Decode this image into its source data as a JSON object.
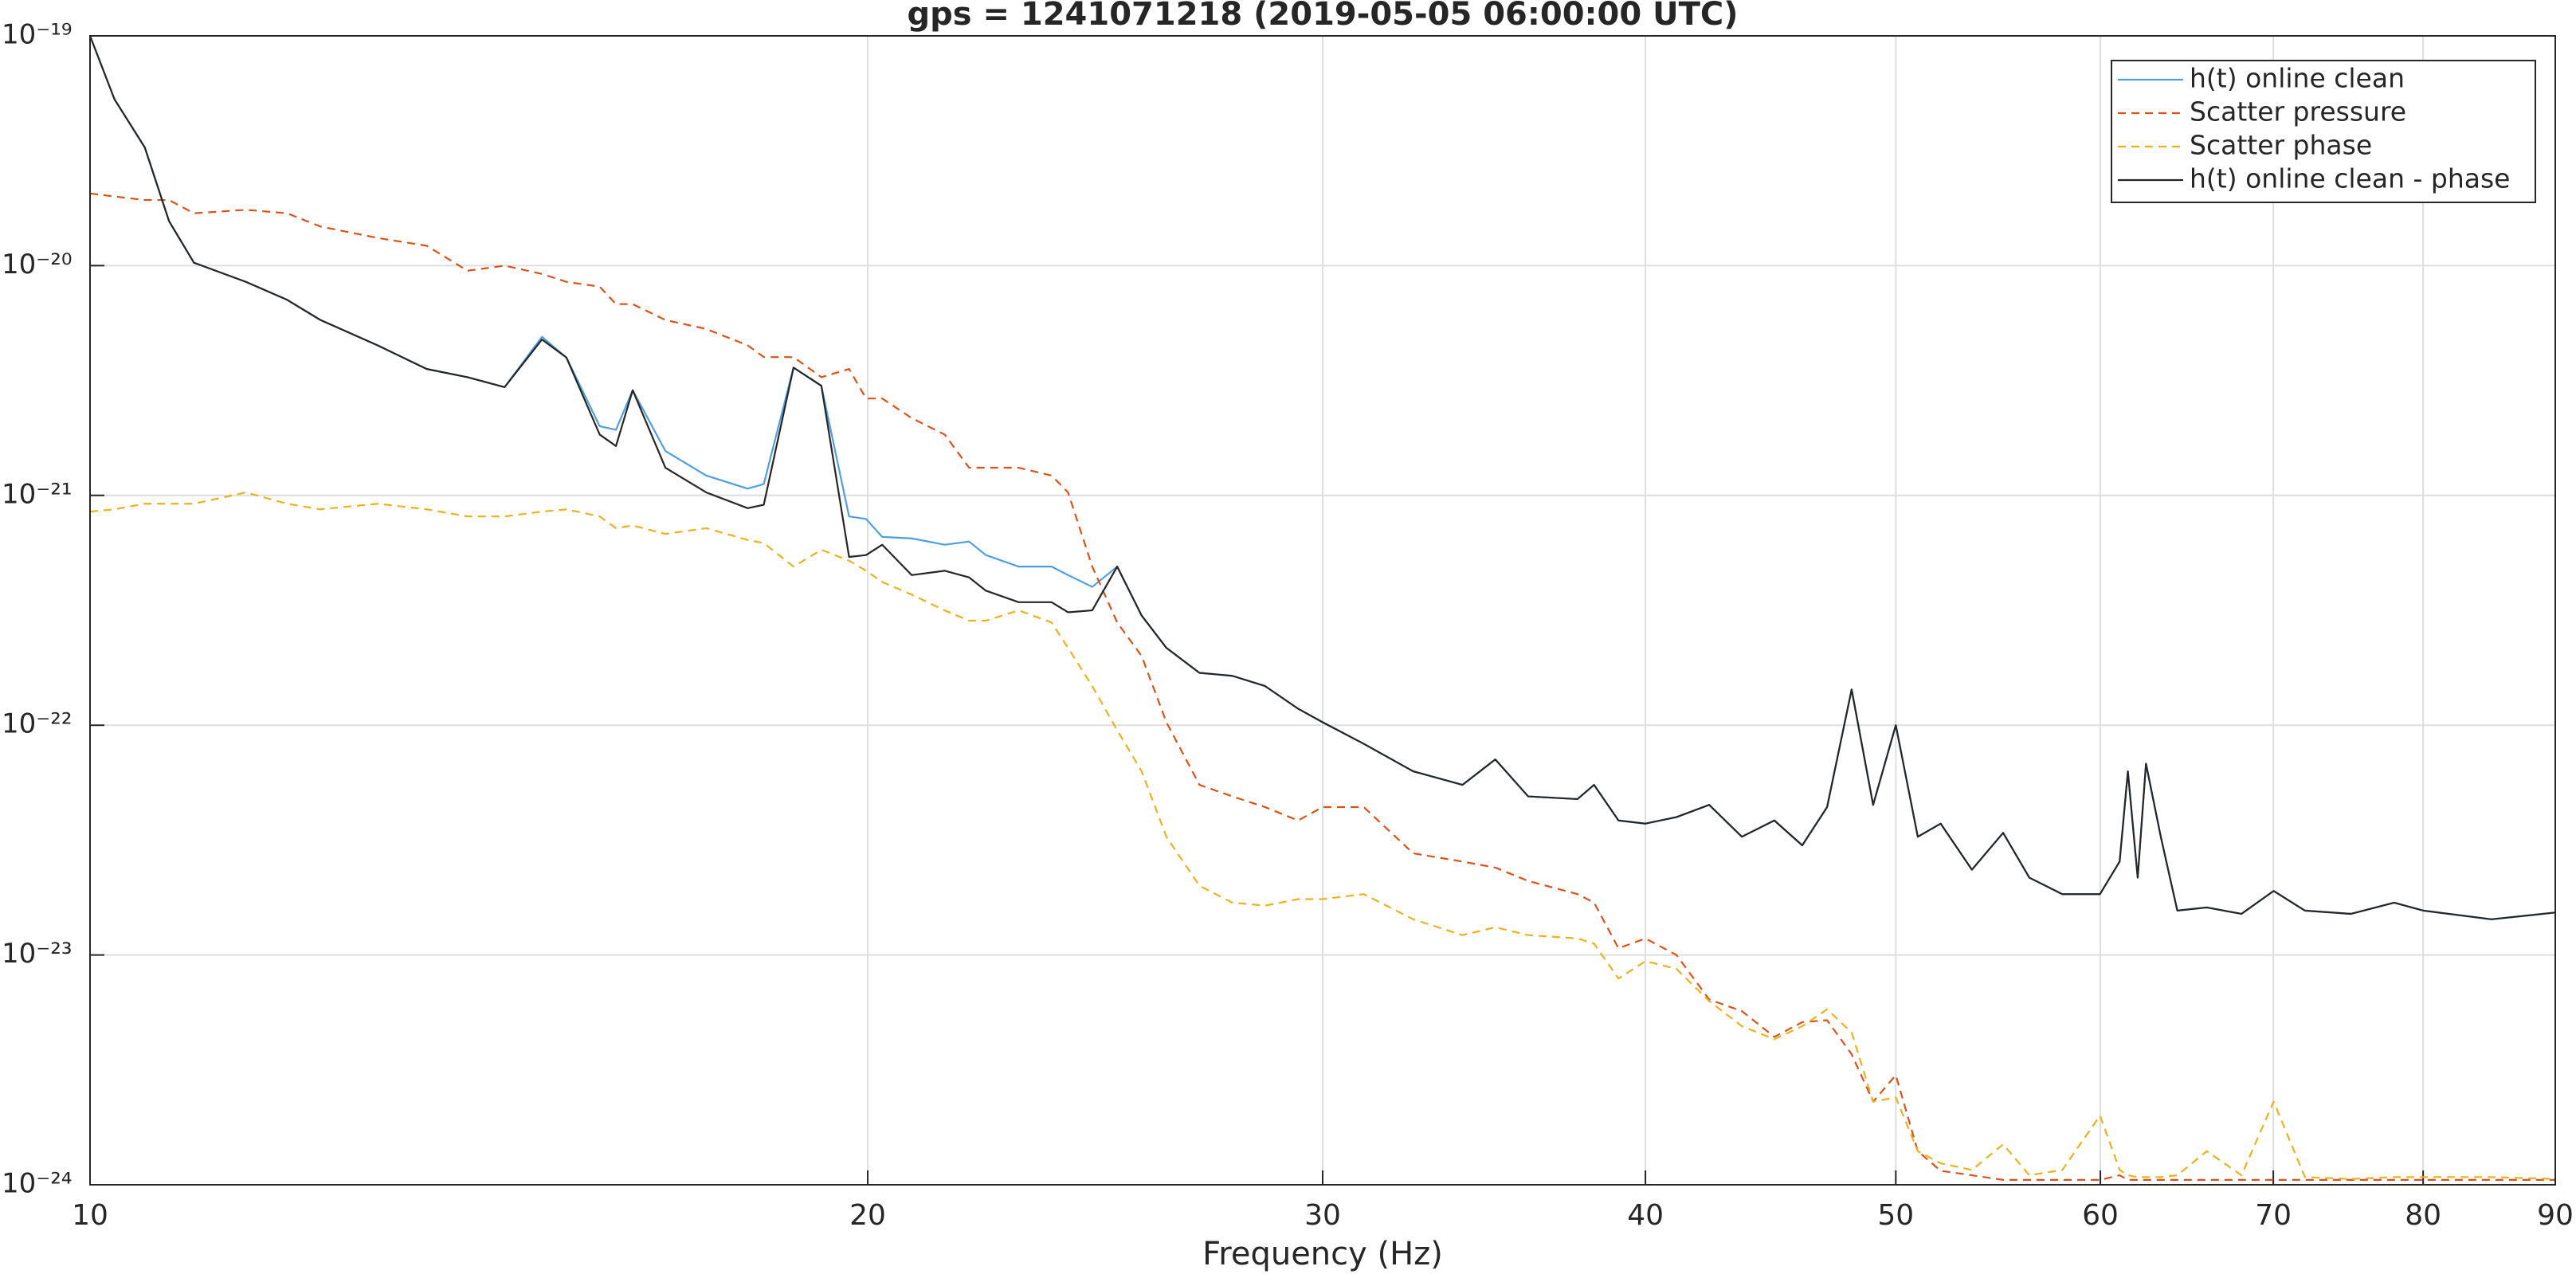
{
  "chart_data": {
    "type": "line",
    "title": "gps = 1241071218 (2019-05-05 06:00:00 UTC)",
    "xlabel": "Frequency (Hz)",
    "xscale": "log",
    "yscale": "log",
    "xlim": [
      10,
      90
    ],
    "ylim": [
      1e-24,
      1e-19
    ],
    "xticks": [
      10,
      20,
      30,
      40,
      50,
      60,
      70,
      80,
      90
    ],
    "yticks": [
      {
        "value": 1e-24,
        "label": "10⁻²⁴"
      },
      {
        "value": 1e-23,
        "label": "10⁻²³"
      },
      {
        "value": 1e-22,
        "label": "10⁻²²"
      },
      {
        "value": 1e-21,
        "label": "10⁻²¹"
      },
      {
        "value": 1e-20,
        "label": "10⁻²⁰"
      },
      {
        "value": 1e-19,
        "label": "10⁻¹⁹"
      }
    ],
    "grid": true,
    "legend": "northeast",
    "x": [
      10,
      10.22,
      10.5,
      10.73,
      10.97,
      11.49,
      11.92,
      12.28,
      12.92,
      13.5,
      14,
      14.47,
      14.96,
      15.29,
      15.75,
      15.98,
      16.22,
      16.7,
      17.32,
      17.97,
      18.23,
      18.72,
      19.19,
      19.67,
      19.97,
      20.26,
      20.8,
      21.42,
      21.89,
      22.22,
      22.88,
      23.56,
      23.91,
      24.43,
      24.98,
      25.53,
      26.1,
      26.88,
      27.68,
      28.5,
      29.35,
      30,
      31.12,
      32.52,
      33.98,
      34.99,
      36.03,
      37.65,
      38.21,
      39.05,
      40,
      41.12,
      42.34,
      43.59,
      44.87,
      46,
      47.03,
      48.07,
      49,
      50,
      50.99,
      52.04,
      53.51,
      55.02,
      56.32,
      58,
      59.98,
      61.04,
      61.49,
      62.03,
      62.49,
      63.32,
      64.26,
      65.97,
      68.04,
      70.02,
      72,
      75.02,
      77.96,
      80.02,
      85.02,
      90
    ],
    "series": [
      {
        "name": "h(t) online clean",
        "color": "#4f9fe0",
        "linestyle": "solid",
        "values": [
          1e-19,
          5.3e-20,
          3.27e-20,
          1.56e-20,
          1.03e-20,
          8.5e-21,
          7.1e-21,
          5.8e-21,
          4.5e-21,
          3.55e-21,
          3.27e-21,
          2.96e-21,
          4.9e-21,
          3.98e-21,
          2e-21,
          1.93e-21,
          2.87e-21,
          1.56e-21,
          1.22e-21,
          1.07e-21,
          1.12e-21,
          3.6e-21,
          3e-21,
          8.1e-22,
          7.9e-22,
          6.6e-22,
          6.5e-22,
          6.1e-22,
          6.3e-22,
          5.5e-22,
          4.9e-22,
          4.9e-22,
          4.5e-22,
          4e-22,
          4.9e-22,
          3e-22,
          2.17e-22,
          1.69e-22,
          1.64e-22,
          1.48e-22,
          1.18e-22,
          1.03e-22,
          8.3e-23,
          6.3e-23,
          5.5e-23,
          7.1e-23,
          4.9e-23,
          4.77e-23,
          5.5e-23,
          3.85e-23,
          3.73e-23,
          3.98e-23,
          4.5e-23,
          3.27e-23,
          3.85e-23,
          3e-23,
          4.4e-23,
          1.43e-22,
          4.5e-23,
          1e-22,
          3.27e-23,
          3.73e-23,
          2.35e-23,
          3.4e-23,
          2.17e-23,
          1.84e-23,
          1.84e-23,
          2.55e-23,
          6.3e-23,
          2.17e-23,
          6.8e-23,
          3.27e-23,
          1.56e-23,
          1.61e-23,
          1.51e-23,
          1.9e-23,
          1.56e-23,
          1.51e-23,
          1.69e-23,
          1.56e-23,
          1.43e-23,
          1.53e-23
        ]
      },
      {
        "name": "Scatter pressure",
        "color": "#d95319",
        "linestyle": "dashed",
        "values": [
          2.06e-20,
          2e-20,
          1.93e-20,
          1.93e-20,
          1.69e-20,
          1.75e-20,
          1.69e-20,
          1.48e-20,
          1.32e-20,
          1.22e-20,
          9.5e-21,
          1e-20,
          9.2e-21,
          8.5e-21,
          8.1e-21,
          6.8e-21,
          6.8e-21,
          5.8e-21,
          5.3e-21,
          4.5e-21,
          4e-21,
          4e-21,
          3.27e-21,
          3.55e-21,
          2.64e-21,
          2.64e-21,
          2.17e-21,
          1.84e-21,
          1.32e-21,
          1.32e-21,
          1.32e-21,
          1.22e-21,
          1.03e-21,
          4.9e-22,
          2.8e-22,
          2e-22,
          1.03e-22,
          5.5e-23,
          4.9e-23,
          4.4e-23,
          3.85e-23,
          4.4e-23,
          4.4e-23,
          2.77e-23,
          2.55e-23,
          2.4e-23,
          2.1e-23,
          1.84e-23,
          1.69e-23,
          1.07e-23,
          1.18e-23,
          1e-23,
          6.4e-24,
          5.7e-24,
          4.4e-24,
          5.1e-24,
          5.2e-24,
          3.7e-24,
          2.3e-24,
          3e-24,
          1.4e-24,
          1.15e-24,
          1.1e-24,
          1.05e-24,
          1.05e-24,
          1.05e-24,
          1.05e-24,
          1.1e-24,
          1.05e-24,
          1.05e-24,
          1.05e-24,
          1.05e-24,
          1.05e-24,
          1.05e-24,
          1.05e-24,
          1.05e-24,
          1.05e-24,
          1.05e-24,
          1.05e-24,
          1.05e-24,
          1.05e-24,
          1.05e-24
        ]
      },
      {
        "name": "Scatter phase",
        "color": "#edb120",
        "linestyle": "dashed",
        "values": [
          8.5e-22,
          8.7e-22,
          9.2e-22,
          9.2e-22,
          9.2e-22,
          1.03e-21,
          9.2e-22,
          8.7e-22,
          9.2e-22,
          8.7e-22,
          8.1e-22,
          8.1e-22,
          8.5e-22,
          8.7e-22,
          8.1e-22,
          7.2e-22,
          7.4e-22,
          6.8e-22,
          7.2e-22,
          6.4e-22,
          6.2e-22,
          4.9e-22,
          5.8e-22,
          5.2e-22,
          4.7e-22,
          4.2e-22,
          3.7e-22,
          3.16e-22,
          2.85e-22,
          2.85e-22,
          3.16e-22,
          2.8e-22,
          2.17e-22,
          1.48e-22,
          9.5e-23,
          6.3e-23,
          3.27e-23,
          2e-23,
          1.69e-23,
          1.64e-23,
          1.75e-23,
          1.75e-23,
          1.84e-23,
          1.43e-23,
          1.22e-23,
          1.32e-23,
          1.22e-23,
          1.18e-23,
          1.12e-23,
          7.9e-24,
          9.4e-24,
          8.7e-24,
          6.3e-24,
          4.9e-24,
          4.3e-24,
          4.9e-24,
          5.8e-24,
          4.6e-24,
          2.3e-24,
          2.4e-24,
          1.4e-24,
          1.24e-24,
          1.16e-24,
          1.5e-24,
          1.1e-24,
          1.16e-24,
          2e-24,
          1.16e-24,
          1.1e-24,
          1.08e-24,
          1.08e-24,
          1.08e-24,
          1.1e-24,
          1.4e-24,
          1.1e-24,
          2.3e-24,
          1.08e-24,
          1.06e-24,
          1.08e-24,
          1.08e-24,
          1.08e-24,
          1.06e-24
        ]
      },
      {
        "name": "h(t) online clean - phase",
        "color": "#262626",
        "linestyle": "solid",
        "values": [
          1e-19,
          5.3e-20,
          3.27e-20,
          1.56e-20,
          1.03e-20,
          8.5e-21,
          7.1e-21,
          5.8e-21,
          4.5e-21,
          3.55e-21,
          3.27e-21,
          2.96e-21,
          4.77e-21,
          3.98e-21,
          1.84e-21,
          1.64e-21,
          2.87e-21,
          1.32e-21,
          1.03e-21,
          8.8e-22,
          9.1e-22,
          3.6e-21,
          3e-21,
          5.4e-22,
          5.5e-22,
          6.1e-22,
          4.5e-22,
          4.7e-22,
          4.4e-22,
          3.85e-22,
          3.43e-22,
          3.43e-22,
          3.1e-22,
          3.16e-22,
          4.9e-22,
          3e-22,
          2.17e-22,
          1.69e-22,
          1.64e-22,
          1.48e-22,
          1.18e-22,
          1.03e-22,
          8.3e-23,
          6.3e-23,
          5.5e-23,
          7.1e-23,
          4.9e-23,
          4.77e-23,
          5.5e-23,
          3.85e-23,
          3.73e-23,
          3.98e-23,
          4.5e-23,
          3.27e-23,
          3.85e-23,
          3e-23,
          4.4e-23,
          1.43e-22,
          4.5e-23,
          1e-22,
          3.27e-23,
          3.73e-23,
          2.35e-23,
          3.4e-23,
          2.17e-23,
          1.84e-23,
          1.84e-23,
          2.55e-23,
          6.3e-23,
          2.17e-23,
          6.8e-23,
          3.27e-23,
          1.56e-23,
          1.61e-23,
          1.51e-23,
          1.9e-23,
          1.56e-23,
          1.51e-23,
          1.69e-23,
          1.56e-23,
          1.43e-23,
          1.53e-23
        ]
      }
    ]
  }
}
